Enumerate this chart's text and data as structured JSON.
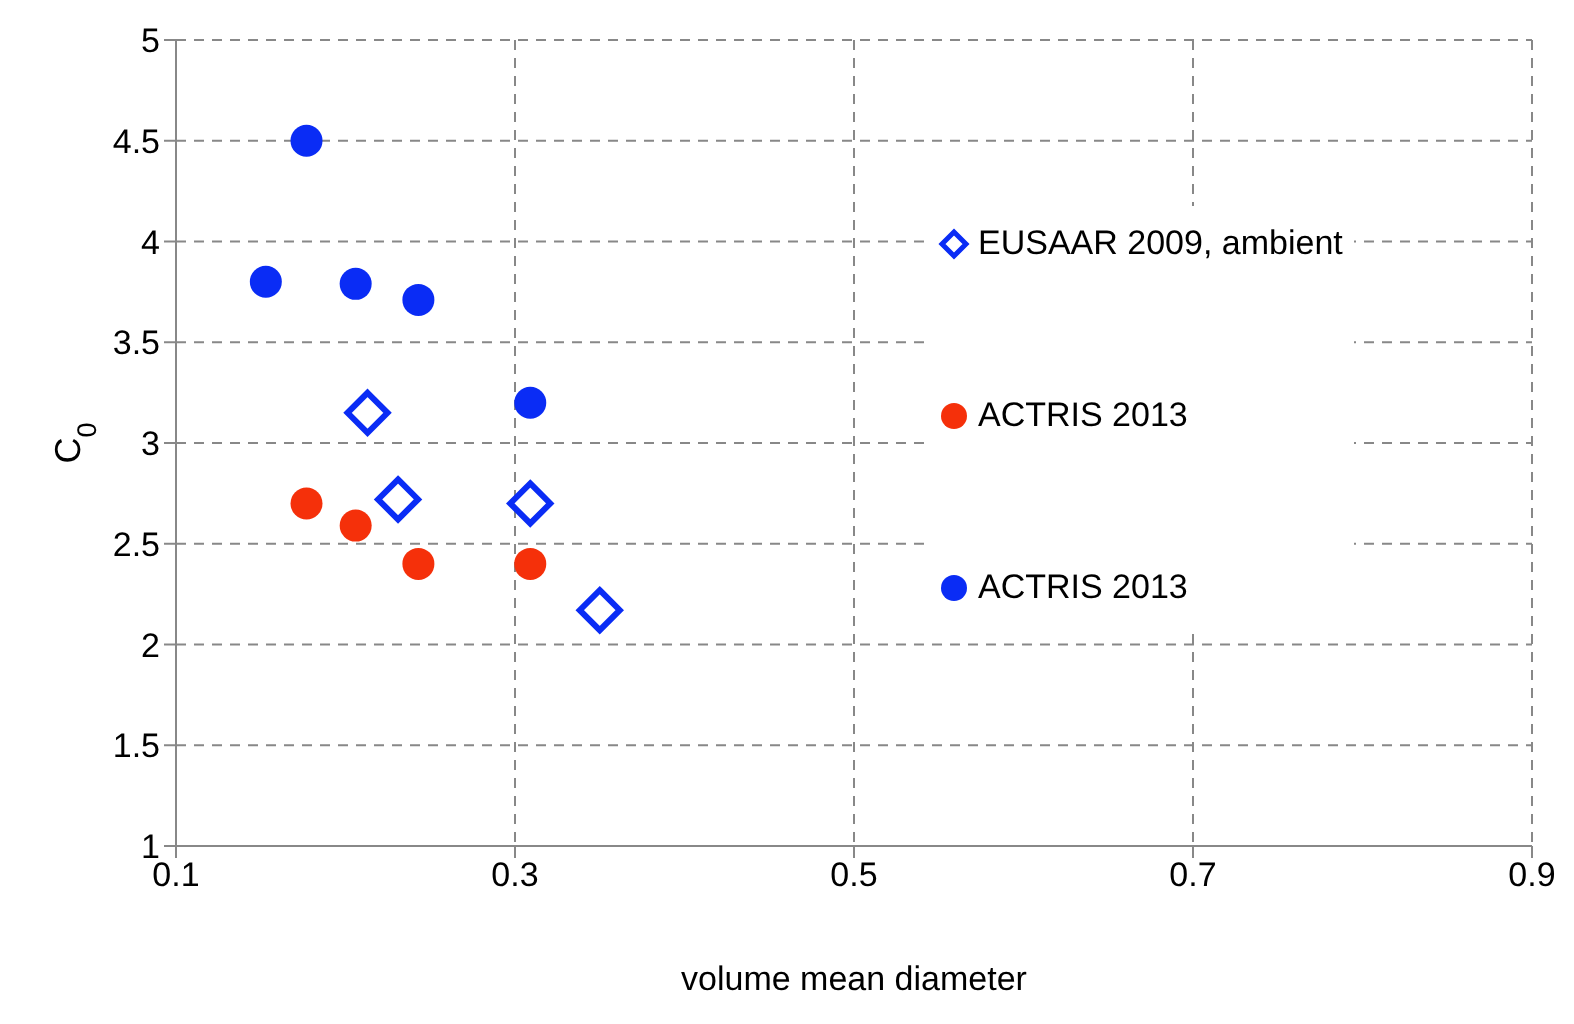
{
  "chart_data": {
    "type": "scatter",
    "xlabel": "volume mean diameter",
    "ylabel": "C$_{0}$",
    "xlim": [
      0.1,
      0.9
    ],
    "xticks": [
      0.1,
      0.3,
      0.5,
      0.7,
      0.9
    ],
    "ylim": [
      1,
      5
    ],
    "yticks": [
      1,
      1.5,
      2,
      2.5,
      3,
      3.5,
      4,
      4.5,
      5
    ],
    "grid": true,
    "legend": "right",
    "series": [
      {
        "name": "EUSAAR 2009, ambient",
        "color": "#0a2cf5",
        "marker": "diamond",
        "x": [
          0.213,
          0.231,
          0.309,
          0.35
        ],
        "values": [
          3.15,
          2.72,
          2.7,
          2.17
        ]
      },
      {
        "name": "ACTRIS 2013",
        "color": "#f5300a",
        "marker": "circle",
        "x": [
          0.177,
          0.206,
          0.243,
          0.309
        ],
        "values": [
          2.7,
          2.59,
          2.4,
          2.4
        ]
      },
      {
        "name": "ACTRIS 2013",
        "color": "#0a2cf5",
        "marker": "circle",
        "x": [
          0.177,
          0.153,
          0.206,
          0.243,
          0.309
        ],
        "values": [
          4.5,
          3.8,
          3.79,
          3.71,
          3.2
        ]
      }
    ]
  }
}
